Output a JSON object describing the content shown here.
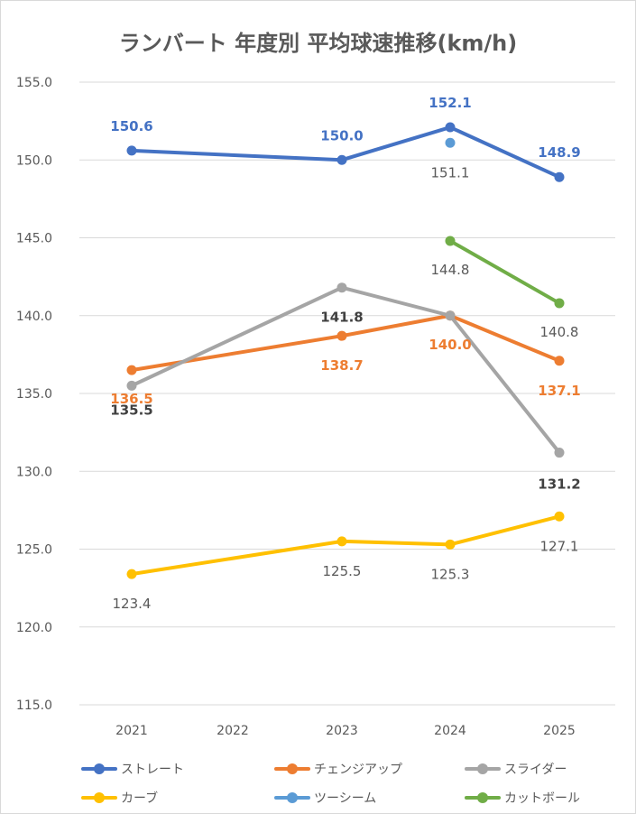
{
  "chart_data": {
    "type": "line",
    "title": "ランバート 年度別 平均球速推移(km/h)",
    "categories": [
      "2021",
      "2022",
      "2023",
      "2024",
      "2025"
    ],
    "ylim": [
      115,
      155
    ],
    "yticks": [
      "115.0",
      "120.0",
      "125.0",
      "130.0",
      "135.0",
      "140.0",
      "145.0",
      "150.0",
      "155.0"
    ],
    "grid": true,
    "legend_position": "bottom",
    "series": [
      {
        "name": "ストレート",
        "color": "#4472C4",
        "values": [
          150.6,
          null,
          150.0,
          152.1,
          148.9
        ],
        "labels": [
          "150.6",
          "",
          "150.0",
          "152.1",
          "148.9"
        ]
      },
      {
        "name": "チェンジアップ",
        "color": "#ED7D31",
        "values": [
          136.5,
          null,
          138.7,
          140.0,
          137.1
        ],
        "labels": [
          "136.5",
          "",
          "138.7",
          "140.0",
          "137.1"
        ]
      },
      {
        "name": "スライダー",
        "color": "#A5A5A5",
        "values": [
          135.5,
          null,
          141.8,
          140.0,
          131.2
        ],
        "labels": [
          "135.5",
          "",
          "141.8",
          "",
          "131.2"
        ]
      },
      {
        "name": "カーブ",
        "color": "#FFC000",
        "values": [
          123.4,
          null,
          125.5,
          125.3,
          127.1
        ],
        "labels": [
          "123.4",
          "",
          "125.5",
          "125.3",
          "127.1"
        ]
      },
      {
        "name": "ツーシーム",
        "color": "#5B9BD5",
        "values": [
          null,
          null,
          null,
          151.1,
          null
        ],
        "labels": [
          "",
          "",
          "",
          "151.1",
          ""
        ]
      },
      {
        "name": "カットボール",
        "color": "#70AD47",
        "values": [
          null,
          null,
          null,
          144.8,
          140.8
        ],
        "labels": [
          "",
          "",
          "",
          "144.8",
          "140.8"
        ]
      }
    ]
  }
}
